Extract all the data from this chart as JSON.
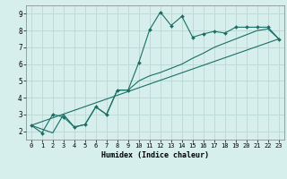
{
  "xlabel": "Humidex (Indice chaleur)",
  "xlim": [
    -0.5,
    23.5
  ],
  "ylim": [
    1.5,
    9.5
  ],
  "xticks": [
    0,
    1,
    2,
    3,
    4,
    5,
    6,
    7,
    8,
    9,
    10,
    11,
    12,
    13,
    14,
    15,
    16,
    17,
    18,
    19,
    20,
    21,
    22,
    23
  ],
  "yticks": [
    2,
    3,
    4,
    5,
    6,
    7,
    8,
    9
  ],
  "background_color": "#d6efec",
  "grid_color": "#b8d8d4",
  "line_color": "#1a6e64",
  "series_main": {
    "x": [
      0,
      1,
      2,
      3,
      4,
      5,
      6,
      7,
      8,
      9,
      10,
      11,
      12,
      13,
      14,
      15,
      16,
      17,
      18,
      19,
      20,
      21,
      22,
      23
    ],
    "y": [
      2.35,
      1.9,
      3.0,
      2.85,
      2.25,
      2.4,
      3.45,
      3.0,
      4.45,
      4.45,
      6.1,
      8.05,
      9.1,
      8.3,
      8.85,
      7.6,
      7.8,
      7.95,
      7.85,
      8.2,
      8.2,
      8.2,
      8.2,
      7.5
    ]
  },
  "series_trend": {
    "x": [
      0,
      2,
      3,
      4,
      5,
      6,
      7,
      8,
      9,
      10,
      11,
      12,
      13,
      14,
      15,
      16,
      17,
      18,
      19,
      20,
      21,
      22,
      23
    ],
    "y": [
      2.35,
      1.9,
      3.0,
      2.25,
      2.4,
      3.45,
      3.0,
      4.45,
      4.45,
      5.0,
      5.3,
      5.5,
      5.75,
      6.0,
      6.35,
      6.65,
      7.0,
      7.25,
      7.5,
      7.75,
      8.0,
      8.1,
      7.5
    ]
  },
  "series_line": {
    "x": [
      0,
      23
    ],
    "y": [
      2.35,
      7.5
    ]
  }
}
